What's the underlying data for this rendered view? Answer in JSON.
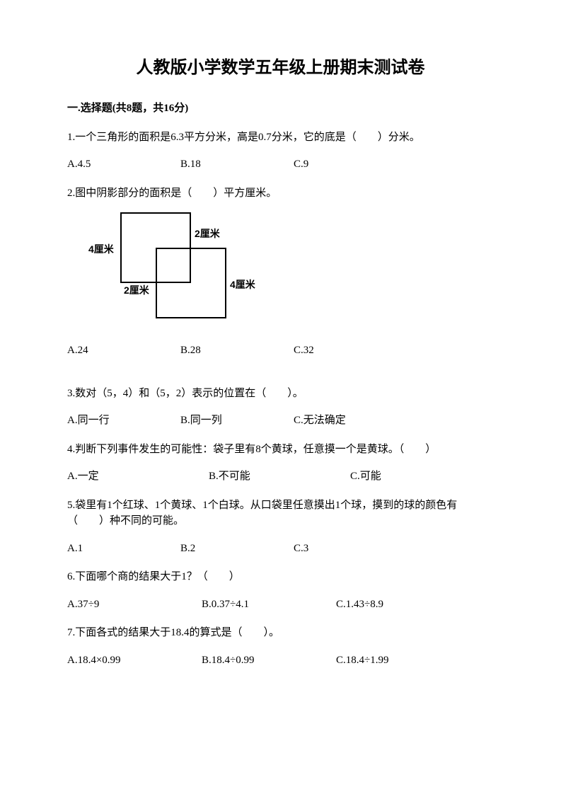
{
  "title": "人教版小学数学五年级上册期末测试卷",
  "section1": {
    "header": "一.选择题(共8题，共16分)",
    "q1": {
      "text": "1.一个三角形的面积是6.3平方分米，高是0.7分米，它的底是（　　）分米。",
      "optA": "A.4.5",
      "optB": "B.18",
      "optC": "C.9"
    },
    "q2": {
      "text": "2.图中阴影部分的面积是（　　）平方厘米。",
      "labelTop": "2厘米",
      "labelLeft": "4厘米",
      "labelRight": "4厘米",
      "labelBottom": "2厘米",
      "optA": "A.24",
      "optB": "B.28",
      "optC": "C.32"
    },
    "q3": {
      "text": "3.数对（5，4）和（5，2）表示的位置在（　　）。",
      "optA": "A.同一行",
      "optB": "B.同一列",
      "optC": "C.无法确定"
    },
    "q4": {
      "text": "4.判断下列事件发生的可能性：袋子里有8个黄球，任意摸一个是黄球。（　　）",
      "optA": "A.一定",
      "optB": "B.不可能",
      "optC": "C.可能"
    },
    "q5": {
      "text": "5.袋里有1个红球、1个黄球、1个白球。从口袋里任意摸出1个球，摸到的球的颜色有（　　）种不同的可能。",
      "optA": "A.1",
      "optB": "B.2",
      "optC": "C.3"
    },
    "q6": {
      "text": "6.下面哪个商的结果大于1？（　　）",
      "optA": "A.37÷9",
      "optB": "B.0.37÷4.1",
      "optC": "C.1.43÷8.9"
    },
    "q7": {
      "text": "7.下面各式的结果大于18.4的算式是（　　）。",
      "optA": "A.18.4×0.99",
      "optB": "B.18.4÷0.99",
      "optC": "C.18.4÷1.99"
    }
  }
}
